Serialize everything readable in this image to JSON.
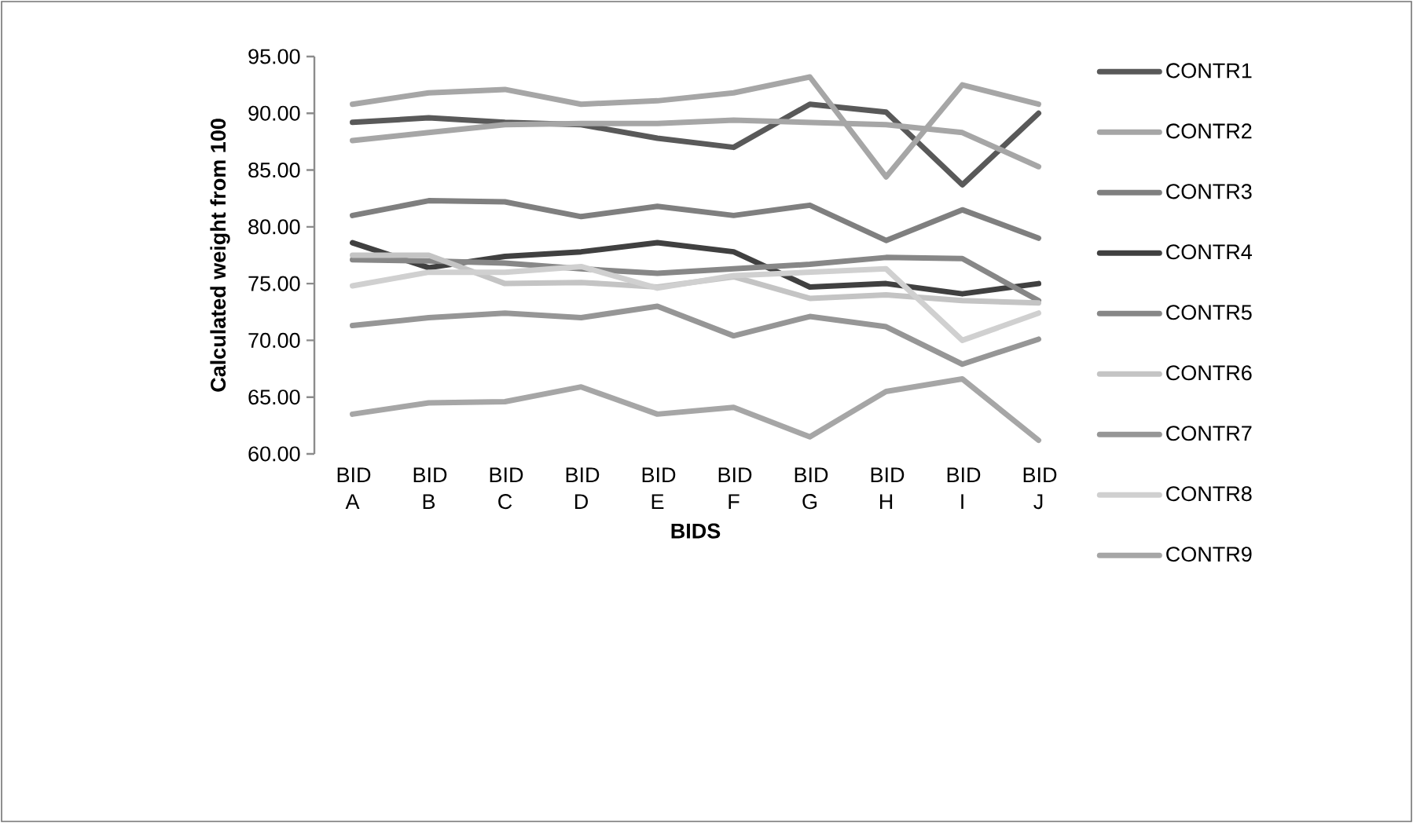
{
  "chart_data": {
    "type": "line",
    "xlabel": "BIDS",
    "ylabel": "Calculated weight from 100",
    "categories": [
      "BID A",
      "BID B",
      "BID C",
      "BID D",
      "BID E",
      "BID F",
      "BID G",
      "BID H",
      "BID I",
      "BID J"
    ],
    "ylim": [
      60,
      95
    ],
    "yticks": [
      {
        "value": 60,
        "label": "60.00"
      },
      {
        "value": 65,
        "label": "65.00"
      },
      {
        "value": 70,
        "label": "70.00"
      },
      {
        "value": 75,
        "label": "75.00"
      },
      {
        "value": 80,
        "label": "80.00"
      },
      {
        "value": 85,
        "label": "85.00"
      },
      {
        "value": 90,
        "label": "90.00"
      },
      {
        "value": 95,
        "label": "95.00"
      }
    ],
    "grid": false,
    "legend": "right",
    "marker": "none",
    "line_style": "solid",
    "series": [
      {
        "name": "CONTR1",
        "color": "#595959",
        "values": [
          89.2,
          89.6,
          89.2,
          89.0,
          87.8,
          87.0,
          90.8,
          90.1,
          83.7,
          90.0
        ]
      },
      {
        "name": "CONTR2",
        "color": "#a6a6a6",
        "values": [
          90.8,
          91.8,
          92.1,
          90.8,
          91.1,
          91.8,
          93.2,
          84.4,
          92.5,
          90.8
        ]
      },
      {
        "name": "CONTR3",
        "color": "#7f7f7f",
        "values": [
          81.0,
          82.3,
          82.2,
          80.9,
          81.8,
          81.0,
          81.9,
          78.8,
          81.5,
          79.0
        ]
      },
      {
        "name": "CONTR4",
        "color": "#404040",
        "values": [
          78.6,
          76.4,
          77.4,
          77.8,
          78.6,
          77.8,
          74.7,
          75.0,
          74.1,
          75.0
        ]
      },
      {
        "name": "CONTR5",
        "color": "#878787",
        "values": [
          77.1,
          77.0,
          76.8,
          76.3,
          75.9,
          76.3,
          76.7,
          77.3,
          77.2,
          73.5
        ]
      },
      {
        "name": "CONTR6",
        "color": "#c4c4c4",
        "values": [
          77.5,
          77.5,
          75.0,
          75.1,
          74.7,
          75.6,
          73.7,
          74.0,
          73.5,
          73.3
        ]
      },
      {
        "name": "CONTR7",
        "color": "#969696",
        "values": [
          71.3,
          72.0,
          72.4,
          72.0,
          73.0,
          70.4,
          72.1,
          71.2,
          67.9,
          70.1
        ]
      },
      {
        "name": "CONTR8",
        "color": "#d0d0d0",
        "values": [
          74.8,
          76.0,
          76.0,
          76.5,
          74.6,
          75.7,
          76.0,
          76.3,
          70.0,
          72.4
        ]
      },
      {
        "name": "CONTR9",
        "color": "#a6a6a6",
        "values": [
          87.6,
          88.3,
          89.0,
          89.1,
          89.1,
          89.4,
          89.2,
          89.0,
          88.3,
          85.3
        ]
      },
      {
        "color": "#a6a6a6",
        "values": [
          63.5,
          64.5,
          64.6,
          65.9,
          63.5,
          64.1,
          61.5,
          65.5,
          66.6,
          61.2
        ]
      }
    ]
  }
}
